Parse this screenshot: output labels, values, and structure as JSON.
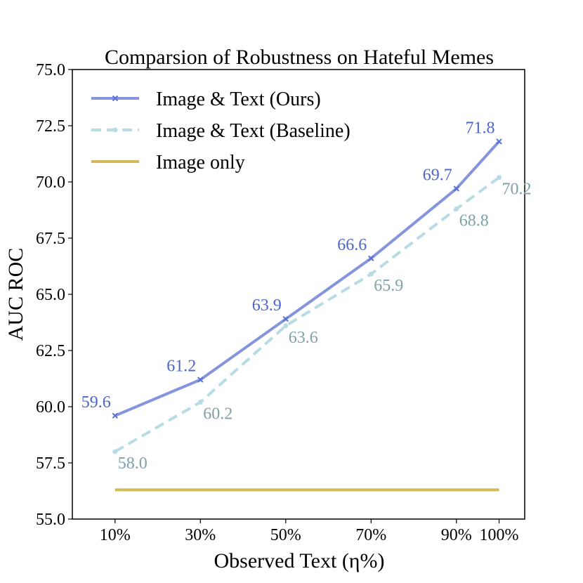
{
  "chart_data": {
    "type": "line",
    "title": "Comparsion of Robustness on Hateful Memes",
    "xlabel": "Observed Text (η%)",
    "ylabel": "AUC ROC",
    "x": [
      10,
      30,
      50,
      70,
      90,
      100
    ],
    "x_tick_labels": [
      "10%",
      "30%",
      "50%",
      "70%",
      "90%",
      "100%"
    ],
    "xlim": [
      0,
      106
    ],
    "ylim": [
      55.0,
      75.0
    ],
    "y_ticks": [
      55.0,
      57.5,
      60.0,
      62.5,
      65.0,
      67.5,
      70.0,
      72.5,
      75.0
    ],
    "y_tick_labels": [
      "55.0",
      "57.5",
      "60.0",
      "62.5",
      "65.0",
      "67.5",
      "70.0",
      "72.5",
      "75.0"
    ],
    "grid": false,
    "legend_position": "top-left",
    "series": [
      {
        "name": "Image & Text (Ours)",
        "values": [
          59.6,
          61.2,
          63.9,
          66.6,
          69.7,
          71.8
        ],
        "data_labels": [
          "59.6",
          "61.2",
          "63.9",
          "66.6",
          "69.7",
          "71.8"
        ],
        "color": "#8595dd",
        "label_color": "#4b66c9",
        "line_style": "solid",
        "marker": "x"
      },
      {
        "name": "Image & Text (Baseline)",
        "values": [
          58.0,
          60.2,
          63.6,
          65.9,
          68.8,
          70.2
        ],
        "data_labels": [
          "58.0",
          "60.2",
          "63.6",
          "65.9",
          "68.8",
          "70.2"
        ],
        "color": "#b7dce3",
        "label_color": "#7fa1a8",
        "line_style": "dashed",
        "marker": "circle"
      },
      {
        "name": "Image only",
        "values": [
          56.3,
          56.3,
          56.3,
          56.3,
          56.3,
          56.3
        ],
        "color": "#d4b95c",
        "line_style": "solid",
        "marker": "none"
      }
    ]
  }
}
